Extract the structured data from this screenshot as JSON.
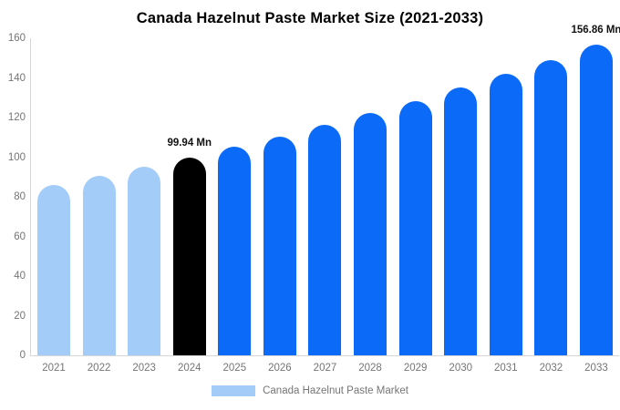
{
  "title": "Canada Hazelnut Paste Market Size (2021-2033)",
  "legend": {
    "label": "Canada Hazelnut Paste Market",
    "swatch_color": "#a3ccf8"
  },
  "colors": {
    "historical_bar": "#a3ccf8",
    "highlight_bar": "#000000",
    "forecast_bar": "#0b6af7",
    "axis_line": "#d6d6d6",
    "tick_label": "#757575",
    "annotation_text": "#111111",
    "title_text": "#000000",
    "background": "#ffffff"
  },
  "chart_data": {
    "type": "bar",
    "title": "Canada Hazelnut Paste Market Size (2021-2033)",
    "categories": [
      "2021",
      "2022",
      "2023",
      "2024",
      "2025",
      "2026",
      "2027",
      "2028",
      "2029",
      "2030",
      "2031",
      "2032",
      "2033"
    ],
    "values": [
      86.0,
      90.41,
      95.06,
      99.94,
      105.07,
      110.47,
      116.14,
      122.11,
      128.38,
      134.97,
      141.9,
      149.19,
      156.86
    ],
    "unit": "Mn",
    "bar_colors": [
      "#a3ccf8",
      "#a3ccf8",
      "#a3ccf8",
      "#000000",
      "#0b6af7",
      "#0b6af7",
      "#0b6af7",
      "#0b6af7",
      "#0b6af7",
      "#0b6af7",
      "#0b6af7",
      "#0b6af7",
      "#0b6af7"
    ],
    "data_labels": [
      {
        "category": "2024",
        "text": "99.94 Mn"
      },
      {
        "category": "2033",
        "text": "156.86 Mn"
      }
    ],
    "xlabel": "",
    "ylabel": "",
    "ylim": [
      0,
      160
    ],
    "y_ticks": [
      0,
      20,
      40,
      60,
      80,
      100,
      120,
      140,
      160
    ],
    "grid": false,
    "legend_position": "bottom",
    "legend_entries": [
      "Canada Hazelnut Paste Market"
    ]
  }
}
